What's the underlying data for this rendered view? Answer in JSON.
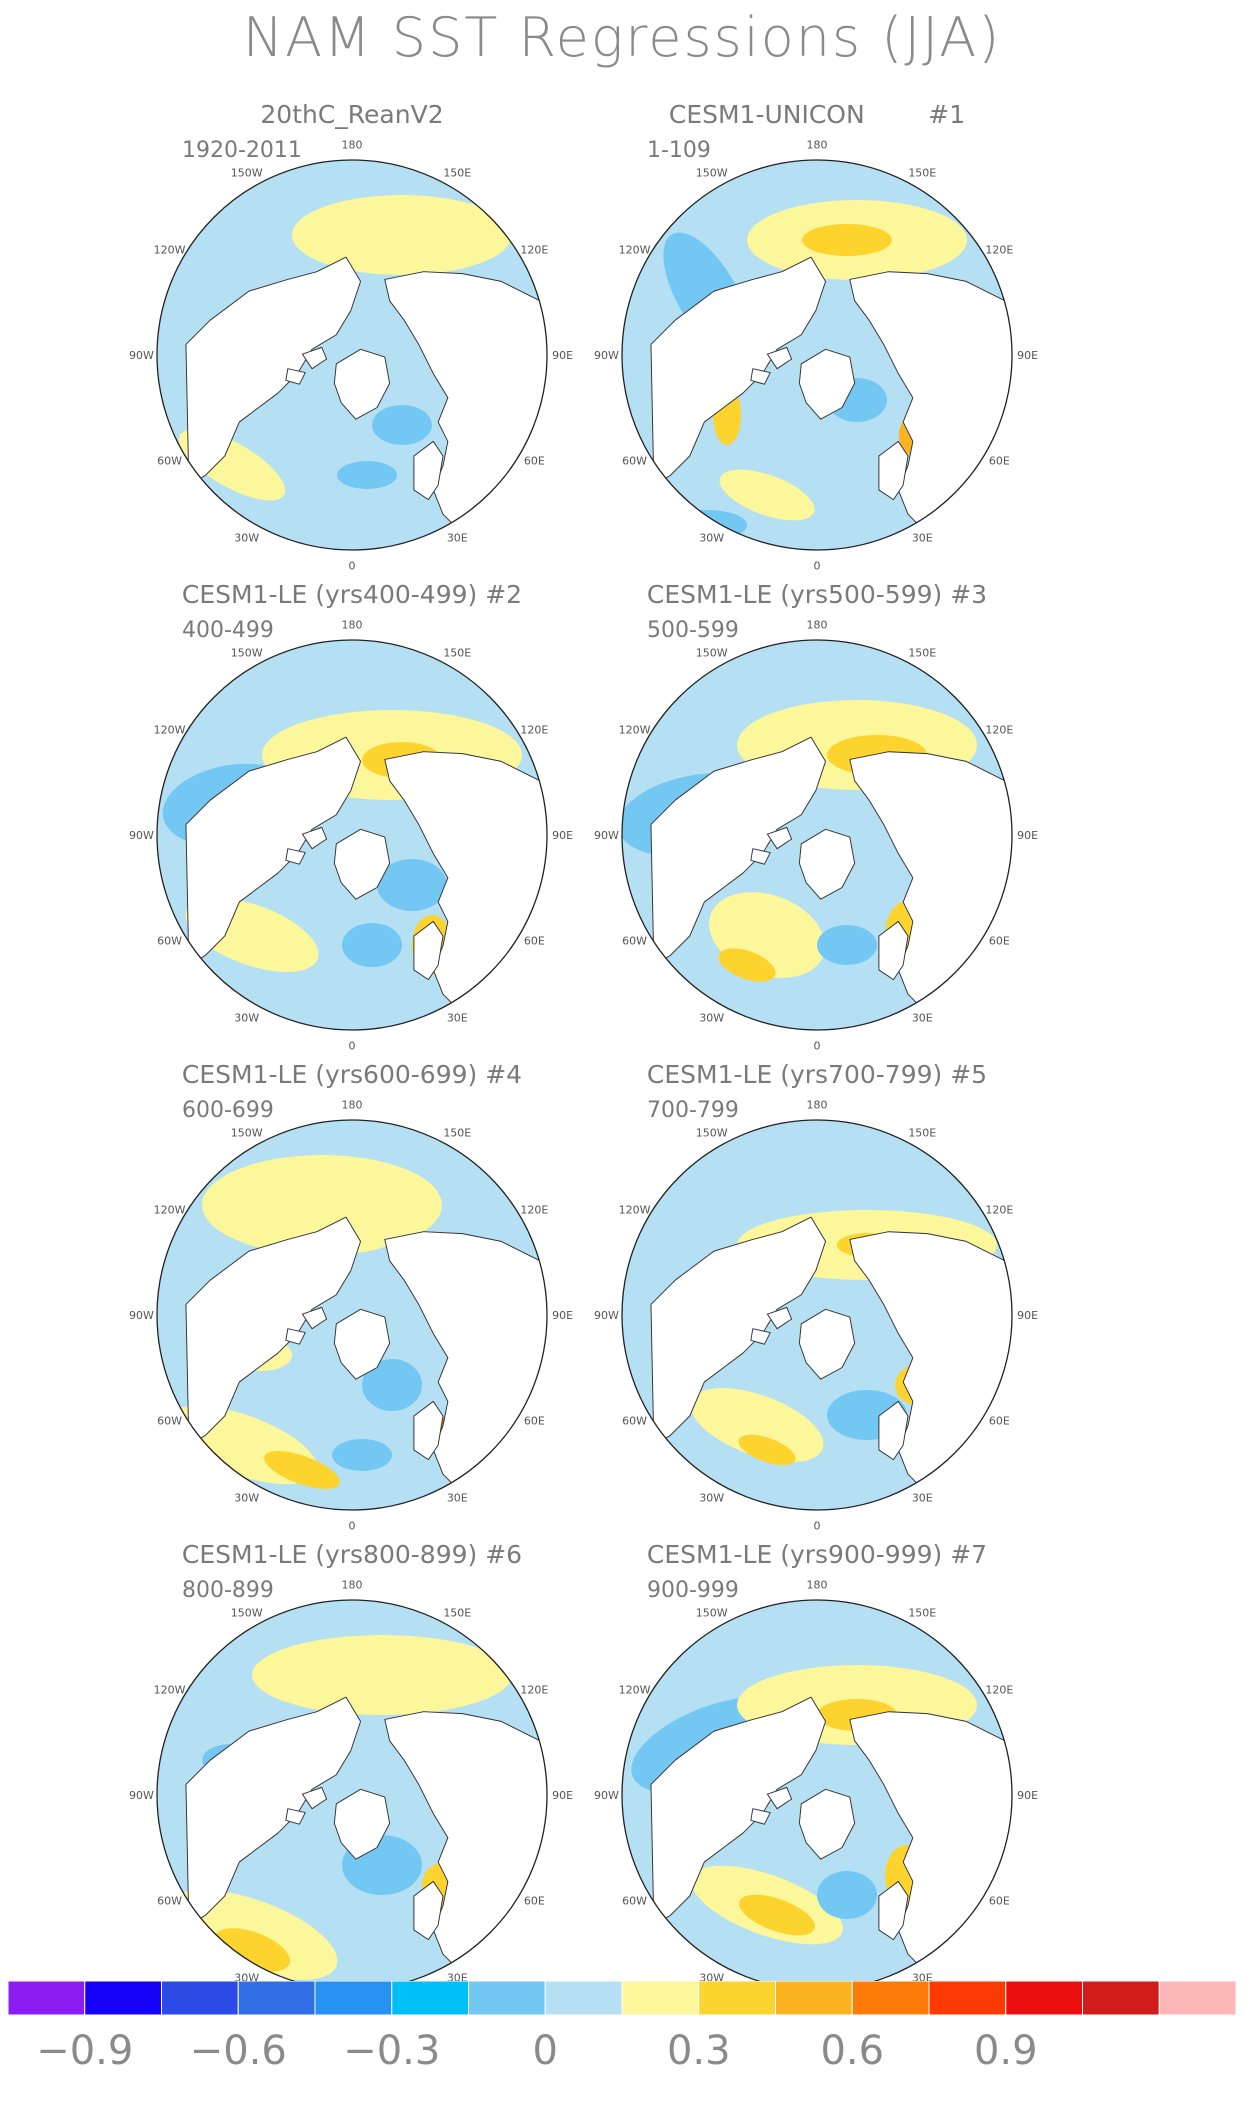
{
  "title": "NAM SST Regressions (JJA)",
  "panels": [
    {
      "title": "20thC_ReanV2",
      "years": "1920-2011",
      "variant": 0
    },
    {
      "title": "CESM1-UNICON        #1",
      "years": "1-109",
      "variant": 1
    },
    {
      "title": "CESM1-LE (yrs400-499) #2",
      "years": "400-499",
      "variant": 2
    },
    {
      "title": "CESM1-LE (yrs500-599) #3",
      "years": "500-599",
      "variant": 3
    },
    {
      "title": "CESM1-LE (yrs600-699) #4",
      "years": "600-699",
      "variant": 4
    },
    {
      "title": "CESM1-LE (yrs700-799) #5",
      "years": "700-799",
      "variant": 5
    },
    {
      "title": "CESM1-LE (yrs800-899) #6",
      "years": "800-899",
      "variant": 6
    },
    {
      "title": "CESM1-LE (yrs900-999) #7",
      "years": "900-999",
      "variant": 7
    }
  ],
  "map": {
    "projection": "north-polar-stereographic",
    "longitude_labels": [
      "180",
      "150E",
      "120E",
      "90E",
      "60E",
      "30E",
      "0",
      "30W",
      "60W",
      "90W",
      "120W",
      "150W"
    ],
    "land_color": "#ffffff",
    "coastline_color": "#333333"
  },
  "colorbar": {
    "colors": [
      "#8b1df2",
      "#1600f7",
      "#2c4ae6",
      "#2f6ee5",
      "#2592f2",
      "#00c0f7",
      "#72c8f2",
      "#b5dff2",
      "#fbf79a",
      "#fdd42e",
      "#fcb321",
      "#fd7c09",
      "#fe3a04",
      "#ec0f0f",
      "#d21b1b",
      "#fdb7b7"
    ],
    "labels": [
      "−0.9",
      "−0.6",
      "−0.3",
      "0",
      "0.3",
      "0.6",
      "0.9"
    ],
    "label_boundaries": [
      1,
      3,
      5,
      7,
      9,
      11,
      13
    ]
  }
}
